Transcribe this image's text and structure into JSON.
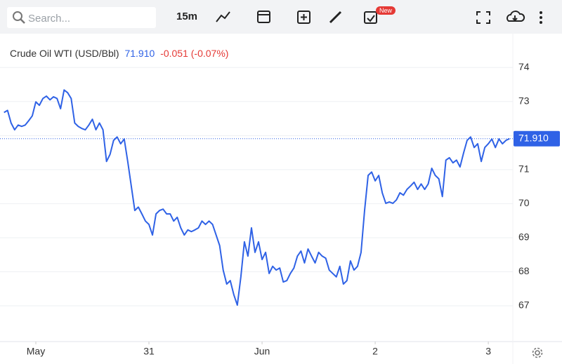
{
  "toolbar": {
    "search_placeholder": "Search...",
    "interval": "15m",
    "badge": "New"
  },
  "chart_data": {
    "type": "line",
    "title": "Crude Oil WTI (USD/Bbl)",
    "price_label": "71.910",
    "change_label": "-0.051 (-0.07%)",
    "x": [
      -6.75,
      -6,
      -5.25,
      -4.5,
      -3.75,
      -3,
      -2.25,
      -1.5,
      -0.75,
      0,
      0.75,
      1.5,
      2.25,
      3,
      3.75,
      4.5,
      5.25,
      6,
      6.75,
      7.5,
      8.25,
      9,
      9.75,
      10.5,
      11.25,
      12,
      12.75,
      13.5,
      14.25,
      15,
      15.75,
      16.5,
      17.25,
      18,
      18.75,
      19.5,
      20.25,
      21,
      21.75,
      22.5,
      23.25,
      24,
      24.75,
      25.5,
      26.25,
      27,
      27.75,
      28.5,
      29.25,
      30,
      30.75,
      31.5,
      32.25,
      33,
      33.75,
      34.5,
      35.25,
      36,
      36.75,
      37.5,
      38.25,
      39,
      39.75,
      40.5,
      41.25,
      42,
      42.75,
      43.5,
      44.25,
      45,
      45.75,
      46.5,
      47.25,
      48,
      48.75,
      49.5,
      50.25,
      51,
      51.75,
      52.5,
      53.25,
      54,
      54.75,
      55.5,
      56.25,
      57,
      57.75,
      58.5,
      59.25,
      60,
      60.75,
      61.5,
      62.25,
      63,
      63.75,
      64.5,
      65.25,
      66,
      66.75,
      67.5,
      68.25,
      69,
      69.75,
      70.5,
      71.25,
      72,
      72.75,
      73.5,
      74.25,
      75,
      75.75,
      76.5,
      77.25,
      78,
      78.75,
      79.5,
      80.25,
      81,
      81.75,
      82.5,
      83.25,
      84,
      84.75,
      85.5,
      86.25,
      87,
      87.75,
      88.5,
      89.25,
      90,
      90.75,
      91.5,
      92.25,
      93,
      93.75,
      94.5,
      95.25,
      96,
      96.75,
      97.5,
      98.25,
      99,
      99.75,
      100.5
    ],
    "series": [
      {
        "name": "Crude Oil WTI",
        "color": "#2f62e6",
        "values": [
          72.68,
          72.74,
          72.37,
          72.17,
          72.31,
          72.27,
          72.31,
          72.44,
          72.58,
          72.99,
          72.89,
          73.09,
          73.16,
          73.05,
          73.14,
          73.09,
          72.79,
          73.34,
          73.26,
          73.09,
          72.37,
          72.27,
          72.21,
          72.17,
          72.31,
          72.48,
          72.17,
          72.37,
          72.17,
          71.24,
          71.45,
          71.86,
          71.96,
          71.76,
          71.9,
          71.24,
          70.52,
          69.8,
          69.9,
          69.7,
          69.49,
          69.39,
          69.08,
          69.7,
          69.8,
          69.84,
          69.7,
          69.7,
          69.49,
          69.6,
          69.29,
          69.08,
          69.23,
          69.18,
          69.23,
          69.29,
          69.49,
          69.39,
          69.49,
          69.39,
          69.08,
          68.77,
          68.05,
          67.64,
          67.74,
          67.33,
          67.02,
          67.85,
          68.88,
          68.46,
          69.29,
          68.57,
          68.88,
          68.36,
          68.57,
          67.95,
          68.16,
          68.05,
          68.11,
          67.7,
          67.74,
          67.95,
          68.11,
          68.46,
          68.61,
          68.26,
          68.67,
          68.46,
          68.26,
          68.57,
          68.46,
          68.4,
          68.05,
          67.95,
          67.85,
          68.16,
          67.64,
          67.74,
          68.32,
          68.05,
          68.16,
          68.57,
          69.8,
          70.83,
          70.93,
          70.67,
          70.83,
          70.32,
          70.01,
          70.05,
          70.01,
          70.11,
          70.32,
          70.25,
          70.42,
          70.52,
          70.63,
          70.42,
          70.58,
          70.42,
          70.58,
          71.04,
          70.83,
          70.73,
          70.21,
          71.28,
          71.35,
          71.2,
          71.28,
          71.08,
          71.49,
          71.86,
          71.96,
          71.65,
          71.76,
          71.24,
          71.65,
          71.76,
          71.9,
          71.65,
          71.9,
          71.76,
          71.86,
          71.91
        ]
      }
    ],
    "xlim": [
      -7.6,
      101.2
    ],
    "xticks": [
      {
        "value": 0,
        "label": "May"
      },
      {
        "value": 24,
        "label": "31"
      },
      {
        "value": 48,
        "label": "Jun"
      },
      {
        "value": 72,
        "label": "2"
      },
      {
        "value": 96,
        "label": "3"
      }
    ],
    "ylim": [
      65.95,
      74.85
    ],
    "yticks": [
      67,
      68,
      69,
      70,
      71,
      72,
      73,
      74
    ],
    "grid": true
  }
}
